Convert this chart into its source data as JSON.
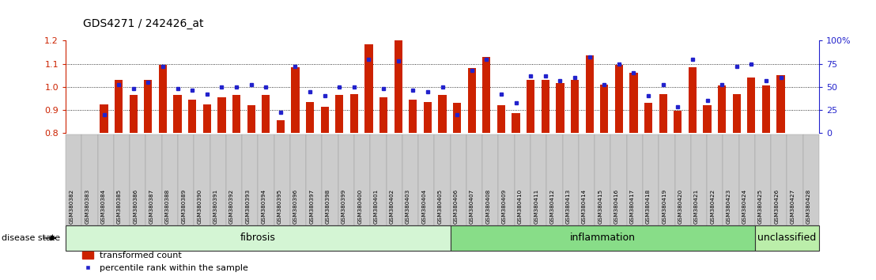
{
  "title": "GDS4271 / 242426_at",
  "samples": [
    "GSM380382",
    "GSM380383",
    "GSM380384",
    "GSM380385",
    "GSM380386",
    "GSM380387",
    "GSM380388",
    "GSM380389",
    "GSM380390",
    "GSM380391",
    "GSM380392",
    "GSM380393",
    "GSM380394",
    "GSM380395",
    "GSM380396",
    "GSM380397",
    "GSM380398",
    "GSM380399",
    "GSM380400",
    "GSM380401",
    "GSM380402",
    "GSM380403",
    "GSM380404",
    "GSM380405",
    "GSM380406",
    "GSM380407",
    "GSM380408",
    "GSM380409",
    "GSM380410",
    "GSM380411",
    "GSM380412",
    "GSM380413",
    "GSM380414",
    "GSM380415",
    "GSM380416",
    "GSM380417",
    "GSM380418",
    "GSM380419",
    "GSM380420",
    "GSM380421",
    "GSM380422",
    "GSM380423",
    "GSM380424",
    "GSM380425",
    "GSM380426",
    "GSM380427",
    "GSM380428"
  ],
  "red_values": [
    0.925,
    1.03,
    0.965,
    1.03,
    1.095,
    0.965,
    0.945,
    0.925,
    0.955,
    0.965,
    0.92,
    0.965,
    0.855,
    1.085,
    0.935,
    0.915,
    0.965,
    0.97,
    1.185,
    0.955,
    1.2,
    0.945,
    0.935,
    0.965,
    0.93,
    1.08,
    1.13,
    0.92,
    0.885,
    1.03,
    1.03,
    1.015,
    1.03,
    1.135,
    1.01,
    1.095,
    1.06,
    0.93,
    0.97,
    0.895,
    1.085,
    0.92,
    1.005,
    0.97,
    1.04,
    1.005,
    1.05
  ],
  "blue_pct": [
    20,
    52,
    48,
    55,
    72,
    48,
    46,
    42,
    50,
    50,
    52,
    50,
    22,
    72,
    45,
    40,
    50,
    50,
    80,
    48,
    78,
    46,
    45,
    50,
    20,
    68,
    80,
    42,
    33,
    62,
    62,
    57,
    60,
    82,
    52,
    75,
    65,
    40,
    52,
    28,
    80,
    35,
    52,
    72,
    75,
    57,
    60
  ],
  "groups": [
    {
      "label": "fibrosis",
      "start": 0,
      "end": 23,
      "color": "#d4f5d4"
    },
    {
      "label": "inflammation",
      "start": 24,
      "end": 42,
      "color": "#88dd88"
    },
    {
      "label": "unclassified",
      "start": 43,
      "end": 46,
      "color": "#bbeeaa"
    }
  ],
  "ymin": 0.8,
  "ymax": 1.2,
  "yticks": [
    0.8,
    0.9,
    1.0,
    1.1,
    1.2
  ],
  "right_yticks": [
    0,
    25,
    50,
    75,
    100
  ],
  "bar_color": "#cc2200",
  "blue_color": "#2222cc",
  "bar_bottom": 0.8,
  "bg_color": "#ffffff",
  "left_axis_color": "#cc2200",
  "right_axis_color": "#2222cc",
  "grid_lines": [
    0.9,
    1.0,
    1.1
  ],
  "tick_box_color": "#cccccc",
  "tick_box_edge": "#999999"
}
